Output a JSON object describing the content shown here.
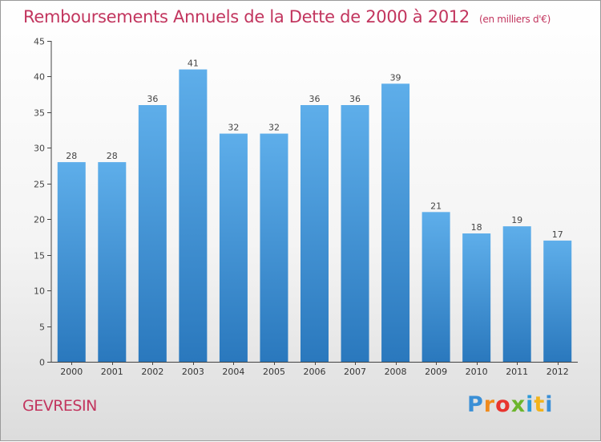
{
  "page": {
    "title": "Remboursements Annuels de la Dette de 2000 à 2012",
    "units": "(en milliers d'€)",
    "commune": "GEVRESIN",
    "brand": "Proxiti"
  },
  "colors": {
    "title": "#c2355e",
    "bar_top": "#5eaeea",
    "bar_bottom": "#2a78bd",
    "axis": "#444444",
    "grid_tick": "#666666"
  },
  "chart_data": {
    "type": "bar",
    "title": "Remboursements Annuels de la Dette de 2000 à 2012",
    "xlabel": "",
    "ylabel": "",
    "ylim": [
      0,
      45
    ],
    "yticks": [
      0,
      5,
      10,
      15,
      20,
      25,
      30,
      35,
      40,
      45
    ],
    "grid": false,
    "categories": [
      "2000",
      "2001",
      "2002",
      "2003",
      "2004",
      "2005",
      "2006",
      "2007",
      "2008",
      "2009",
      "2010",
      "2011",
      "2012"
    ],
    "values": [
      28,
      28,
      36,
      41,
      32,
      32,
      36,
      36,
      39,
      21,
      18,
      19,
      17
    ],
    "data_labels": [
      "28",
      "28",
      "36",
      "41",
      "32",
      "32",
      "36",
      "36",
      "39",
      "21",
      "18",
      "19",
      "17"
    ]
  }
}
